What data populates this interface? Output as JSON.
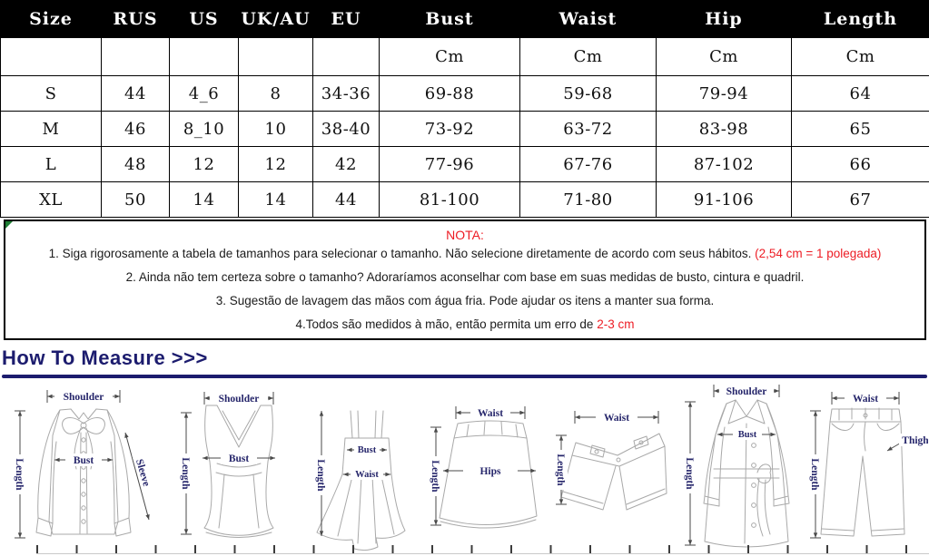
{
  "size_chart": {
    "columns": [
      "Size",
      "RUS",
      "US",
      "UK/AU",
      "EU",
      "Bust",
      "Waist",
      "Hip",
      "Length"
    ],
    "unit_row": [
      "",
      "",
      "",
      "",
      "",
      "Cm",
      "Cm",
      "Cm",
      "Cm"
    ],
    "rows": [
      [
        "S",
        "44",
        "4_6",
        "8",
        "34-36",
        "69-88",
        "59-68",
        "79-94",
        "64"
      ],
      [
        "M",
        "46",
        "8_10",
        "10",
        "38-40",
        "73-92",
        "63-72",
        "83-98",
        "65"
      ],
      [
        "L",
        "48",
        "12",
        "12",
        "42",
        "77-96",
        "67-76",
        "87-102",
        "66"
      ],
      [
        "XL",
        "50",
        "14",
        "14",
        "44",
        "81-100",
        "71-80",
        "91-106",
        "67"
      ]
    ]
  },
  "notes": {
    "title": "NOTA:",
    "items": [
      {
        "text": "1. Siga rigorosamente a tabela de tamanhos para selecionar o tamanho. Não selecione diretamente de acordo com seus hábitos. ",
        "red": "(2,54 cm = 1 polegada)"
      },
      {
        "text": "2. Ainda não tem certeza sobre o tamanho? Adoraríamos aconselhar com base em suas medidas de busto, cintura e quadril.",
        "red": ""
      },
      {
        "text": "3. Sugestão de lavagem das mãos com água fria. Pode ajudar os itens a manter sua forma.",
        "red": ""
      },
      {
        "text": "4.Todos são medidos à mão, então permita um erro de ",
        "red": "2-3 cm"
      }
    ]
  },
  "measure": {
    "heading": "How To Measure >>>",
    "diagrams": [
      {
        "name": "blouse",
        "shoulder": "Shoulder",
        "length": "Length",
        "bust": "Bust",
        "sleeve": "Sleeve"
      },
      {
        "name": "tank-top",
        "shoulder": "Shoulder",
        "length": "Length",
        "bust": "Bust"
      },
      {
        "name": "dress",
        "length": "Length",
        "bust": "Bust",
        "waist": "Waist"
      },
      {
        "name": "skirt",
        "waist": "Waist",
        "length": "Length",
        "hips": "Hips"
      },
      {
        "name": "shorts",
        "waist": "Waist",
        "length": "Length"
      },
      {
        "name": "coat",
        "shoulder": "Shoulder",
        "length": "Length",
        "bust": "Bust"
      },
      {
        "name": "pants",
        "waist": "Waist",
        "length": "Length",
        "thigh": "Thigh"
      }
    ]
  },
  "colors": {
    "header_bg": "#000000",
    "note_red": "#ed1c24",
    "heading_navy": "#1c1c6e",
    "label_navy": "#26266b"
  }
}
